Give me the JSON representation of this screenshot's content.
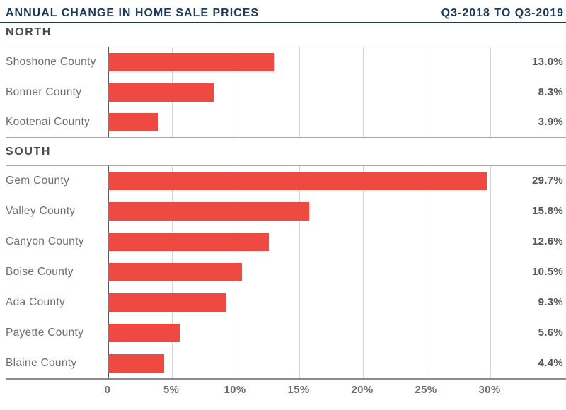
{
  "header": {
    "title": "ANNUAL CHANGE IN HOME SALE PRICES",
    "period": "Q3-2018 TO Q3-2019"
  },
  "colors": {
    "bar": "#EF4A41",
    "accent_navy": "#1B3A5C",
    "gridline": "#D4D4D4",
    "axis_line": "#54565B",
    "label_gray": "#6D6E71",
    "value_gray": "#55565A"
  },
  "chart_data": {
    "type": "bar",
    "orientation": "horizontal",
    "title": "ANNUAL CHANGE IN HOME SALE PRICES",
    "subtitle": "Q3-2018 TO Q3-2019",
    "value_unit": "percent",
    "xlim": [
      0,
      35.9
    ],
    "grid": true,
    "x_ticks": [
      {
        "label": "0",
        "value": 0
      },
      {
        "label": "5%",
        "value": 5
      },
      {
        "label": "10%",
        "value": 10
      },
      {
        "label": "15%",
        "value": 15
      },
      {
        "label": "20%",
        "value": 20
      },
      {
        "label": "25%",
        "value": 25
      },
      {
        "label": "30%",
        "value": 30
      }
    ],
    "sections": [
      {
        "label": "NORTH",
        "rows": [
          {
            "category": "Shoshone County",
            "value": 13.0,
            "value_label": "13.0%"
          },
          {
            "category": "Bonner County",
            "value": 8.3,
            "value_label": "8.3%"
          },
          {
            "category": "Kootenai County",
            "value": 3.9,
            "value_label": "3.9%"
          }
        ]
      },
      {
        "label": "SOUTH",
        "rows": [
          {
            "category": "Gem County",
            "value": 29.7,
            "value_label": "29.7%"
          },
          {
            "category": "Valley County",
            "value": 15.8,
            "value_label": "15.8%"
          },
          {
            "category": "Canyon County",
            "value": 12.6,
            "value_label": "12.6%"
          },
          {
            "category": "Boise County",
            "value": 10.5,
            "value_label": "10.5%"
          },
          {
            "category": "Ada County",
            "value": 9.3,
            "value_label": "9.3%"
          },
          {
            "category": "Payette County",
            "value": 5.6,
            "value_label": "5.6%"
          },
          {
            "category": "Blaine County",
            "value": 4.4,
            "value_label": "4.4%"
          }
        ]
      }
    ]
  }
}
